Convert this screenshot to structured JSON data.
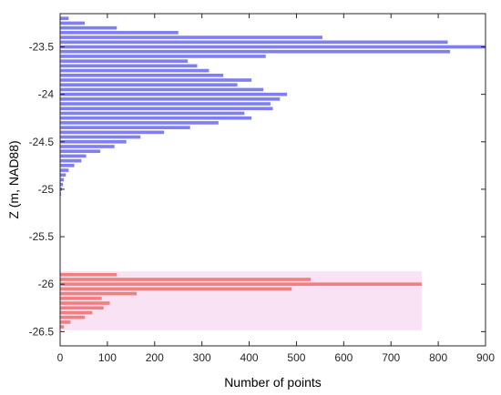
{
  "chart_data": {
    "type": "bar",
    "orientation": "horizontal",
    "xlabel": "Number of points",
    "ylabel": "Z (m, NAD88)",
    "xlim": [
      0,
      900
    ],
    "ylim": [
      -26.65,
      -23.15
    ],
    "xticks": [
      0,
      100,
      200,
      300,
      400,
      500,
      600,
      700,
      800,
      900
    ],
    "yticks": [
      -26.5,
      -26,
      -25.5,
      -25,
      -24.5,
      -24,
      -23.5
    ],
    "ytick_labels": [
      "-26.5",
      "-26",
      "-25.5",
      "-25",
      "-24.5",
      "-24",
      "-23.5"
    ],
    "grid": false,
    "legend": "none",
    "series": [
      {
        "color": "#7f7ff2",
        "bar_height": 0.035,
        "y": [
          -23.2,
          -23.25,
          -23.3,
          -23.35,
          -23.4,
          -23.45,
          -23.5,
          -23.55,
          -23.6,
          -23.65,
          -23.7,
          -23.75,
          -23.8,
          -23.85,
          -23.9,
          -23.95,
          -24.0,
          -24.05,
          -24.1,
          -24.15,
          -24.2,
          -24.25,
          -24.3,
          -24.35,
          -24.4,
          -24.45,
          -24.5,
          -24.55,
          -24.6,
          -24.65,
          -24.7,
          -24.75,
          -24.8,
          -24.85,
          -24.9,
          -24.95,
          -25.0,
          -25.05
        ],
        "values": [
          18,
          52,
          120,
          250,
          555,
          820,
          900,
          825,
          435,
          270,
          290,
          315,
          345,
          405,
          375,
          430,
          480,
          465,
          445,
          450,
          390,
          405,
          335,
          275,
          220,
          170,
          140,
          115,
          85,
          55,
          45,
          30,
          18,
          12,
          8,
          6,
          4,
          2
        ]
      },
      {
        "color": "#f08080",
        "shadow_color": "#f5d5f0",
        "bar_height": 0.035,
        "y": [
          -25.9,
          -25.95,
          -26.0,
          -26.05,
          -26.1,
          -26.15,
          -26.2,
          -26.25,
          -26.3,
          -26.35,
          -26.4,
          -26.45
        ],
        "values": [
          120,
          530,
          765,
          490,
          162,
          88,
          105,
          92,
          68,
          52,
          22,
          8
        ]
      }
    ]
  }
}
